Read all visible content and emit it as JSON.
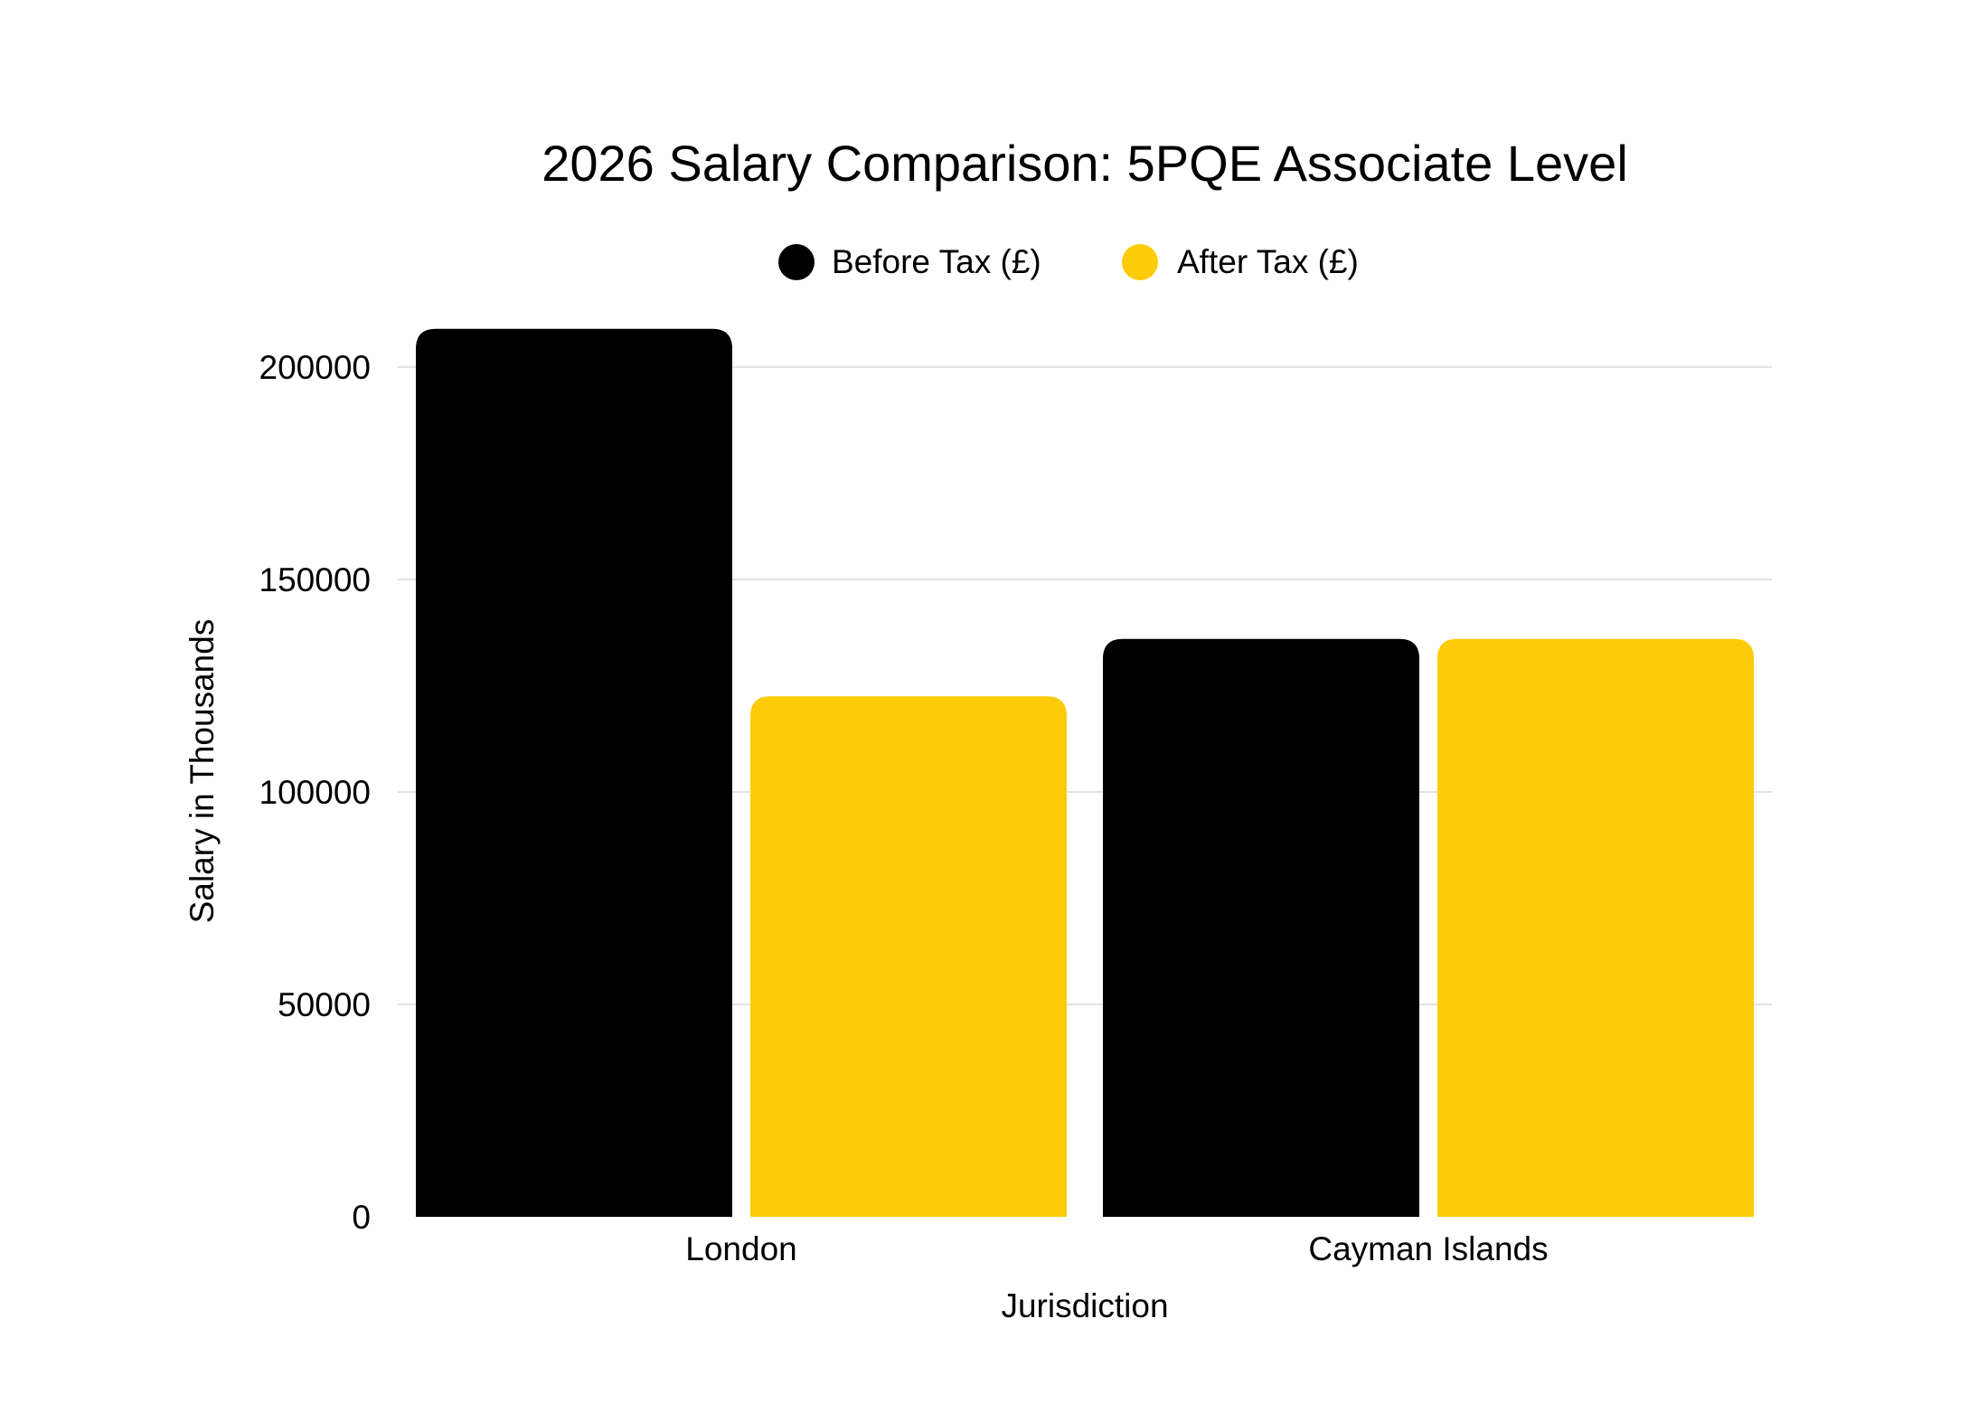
{
  "chart_data": {
    "type": "bar",
    "title": "2026 Salary Comparison: 5PQE Associate Level",
    "xlabel": "Jurisdiction",
    "ylabel": "Salary in Thousands",
    "categories": [
      "London",
      "Cayman Islands"
    ],
    "series": [
      {
        "name": "Before Tax (£)",
        "color": "#000000",
        "values": [
          209000,
          136000
        ]
      },
      {
        "name": "After Tax (£)",
        "color": "#FDCB07",
        "values": [
          122500,
          136000
        ]
      }
    ],
    "ylim": [
      0,
      200000
    ],
    "yticks": [
      "0",
      "50000",
      "100000",
      "150000",
      "200000"
    ],
    "grid": true,
    "legend": "top-center"
  }
}
